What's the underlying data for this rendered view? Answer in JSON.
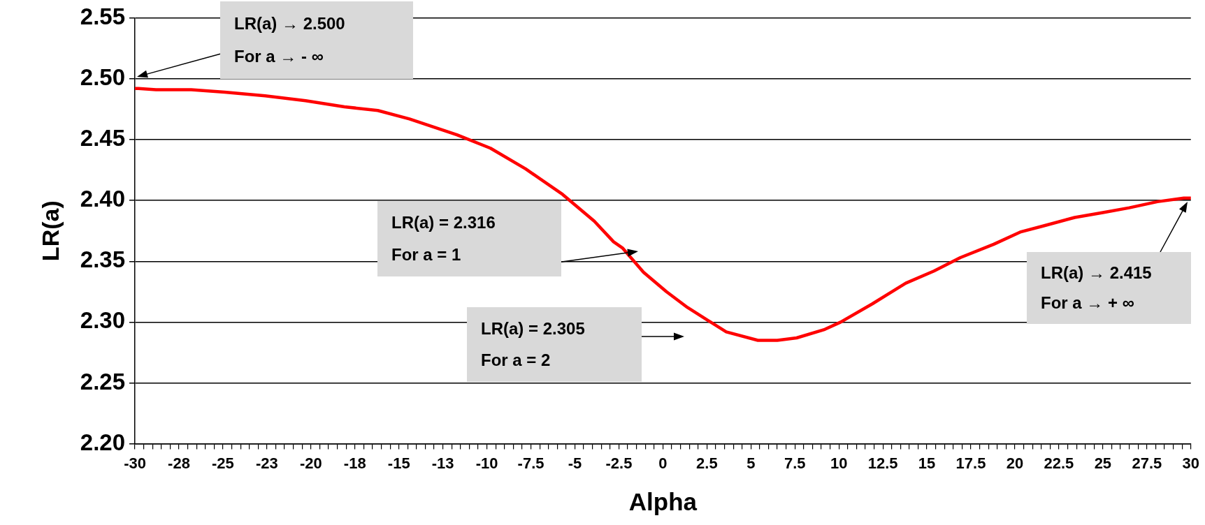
{
  "chart_data": {
    "type": "line",
    "xlabel": "Alpha",
    "ylabel": "LR(a)",
    "legend": false,
    "grid": "y",
    "marker": "none",
    "line_style": "solid",
    "x": [
      -30,
      -29.8,
      -28.8,
      -26.8,
      -24.9,
      -22.6,
      -20.3,
      -18.1,
      -16.2,
      -14.4,
      -11.7,
      -9.8,
      -7.8,
      -5.7,
      -3.9,
      -2.8,
      -2.3,
      -1.1,
      0.2,
      1.4,
      2.6,
      3.6,
      5.4,
      6.5,
      7.6,
      9.2,
      10.1,
      11.9,
      13.8,
      15.4,
      16.9,
      18.8,
      20.3,
      21.6,
      23.4,
      25,
      26.5,
      28.1,
      29.6,
      30
    ],
    "series": [
      {
        "color": "#ff0000",
        "values": [
          2.492,
          2.492,
          2.491,
          2.491,
          2.489,
          2.486,
          2.482,
          2.477,
          2.474,
          2.467,
          2.454,
          2.443,
          2.426,
          2.405,
          2.383,
          2.366,
          2.361,
          2.341,
          2.325,
          2.312,
          2.301,
          2.292,
          2.285,
          2.285,
          2.287,
          2.294,
          2.3,
          2.315,
          2.332,
          2.342,
          2.353,
          2.364,
          2.374,
          2.379,
          2.386,
          2.39,
          2.394,
          2.399,
          2.402,
          2.402
        ]
      }
    ],
    "xlim": [
      -30,
      30
    ],
    "xticks": [
      -30,
      {
        "value": -29.5,
        "label": null
      },
      {
        "value": -29,
        "label": null
      },
      {
        "value": -28.5,
        "label": null
      },
      {
        "value": -28,
        "label": null
      },
      {
        "value": -27.5,
        "label": "-28"
      },
      {
        "value": -27,
        "label": null
      },
      {
        "value": -26.5,
        "label": null
      },
      {
        "value": -26,
        "label": null
      },
      {
        "value": -25.5,
        "label": null
      },
      -25,
      {
        "value": -24.5,
        "label": null
      },
      {
        "value": -24,
        "label": null
      },
      {
        "value": -23.5,
        "label": null
      },
      {
        "value": -23,
        "label": null
      },
      {
        "value": -22.5,
        "label": "-23"
      },
      {
        "value": -22,
        "label": null
      },
      {
        "value": -21.5,
        "label": null
      },
      {
        "value": -21,
        "label": null
      },
      {
        "value": -20.5,
        "label": null
      },
      -20,
      {
        "value": -19.5,
        "label": null
      },
      {
        "value": -19,
        "label": null
      },
      {
        "value": -18.5,
        "label": null
      },
      {
        "value": -18,
        "label": null
      },
      {
        "value": -17.5,
        "label": "-18"
      },
      {
        "value": -17,
        "label": null
      },
      {
        "value": -16.5,
        "label": null
      },
      {
        "value": -16,
        "label": null
      },
      {
        "value": -15.5,
        "label": null
      },
      -15,
      {
        "value": -14.5,
        "label": null
      },
      {
        "value": -14,
        "label": null
      },
      {
        "value": -13.5,
        "label": null
      },
      {
        "value": -13,
        "label": null
      },
      {
        "value": -12.5,
        "label": "-13"
      },
      {
        "value": -12,
        "label": null
      },
      {
        "value": -11.5,
        "label": null
      },
      {
        "value": -11,
        "label": null
      },
      {
        "value": -10.5,
        "label": null
      },
      -10,
      {
        "value": -9.5,
        "label": null
      },
      {
        "value": -9,
        "label": null
      },
      {
        "value": -8.5,
        "label": null
      },
      {
        "value": -8,
        "label": null
      },
      -7.5,
      {
        "value": -7,
        "label": null
      },
      {
        "value": -6.5,
        "label": null
      },
      {
        "value": -6,
        "label": null
      },
      {
        "value": -5.5,
        "label": null
      },
      -5,
      {
        "value": -4.5,
        "label": null
      },
      {
        "value": -4,
        "label": null
      },
      {
        "value": -3.5,
        "label": null
      },
      {
        "value": -3,
        "label": null
      },
      -2.5,
      {
        "value": -2,
        "label": null
      },
      {
        "value": -1.5,
        "label": null
      },
      {
        "value": -1,
        "label": null
      },
      {
        "value": -0.5,
        "label": null
      },
      0,
      {
        "value": 0.5,
        "label": null
      },
      {
        "value": 1,
        "label": null
      },
      {
        "value": 1.5,
        "label": null
      },
      {
        "value": 2,
        "label": null
      },
      2.5,
      {
        "value": 3,
        "label": null
      },
      {
        "value": 3.5,
        "label": null
      },
      {
        "value": 4,
        "label": null
      },
      {
        "value": 4.5,
        "label": null
      },
      5,
      {
        "value": 5.5,
        "label": null
      },
      {
        "value": 6,
        "label": null
      },
      {
        "value": 6.5,
        "label": null
      },
      {
        "value": 7,
        "label": null
      },
      7.5,
      {
        "value": 8,
        "label": null
      },
      {
        "value": 8.5,
        "label": null
      },
      {
        "value": 9,
        "label": null
      },
      {
        "value": 9.5,
        "label": null
      },
      10,
      {
        "value": 10.5,
        "label": null
      },
      {
        "value": 11,
        "label": null
      },
      {
        "value": 11.5,
        "label": null
      },
      {
        "value": 12,
        "label": null
      },
      12.5,
      {
        "value": 13,
        "label": null
      },
      {
        "value": 13.5,
        "label": null
      },
      {
        "value": 14,
        "label": null
      },
      {
        "value": 14.5,
        "label": null
      },
      15,
      {
        "value": 15.5,
        "label": null
      },
      {
        "value": 16,
        "label": null
      },
      {
        "value": 16.5,
        "label": null
      },
      {
        "value": 17,
        "label": null
      },
      17.5,
      {
        "value": 18,
        "label": null
      },
      {
        "value": 18.5,
        "label": null
      },
      {
        "value": 19,
        "label": null
      },
      {
        "value": 19.5,
        "label": null
      },
      20,
      {
        "value": 20.5,
        "label": null
      },
      {
        "value": 21,
        "label": null
      },
      {
        "value": 21.5,
        "label": null
      },
      {
        "value": 22,
        "label": null
      },
      22.5,
      {
        "value": 23,
        "label": null
      },
      {
        "value": 23.5,
        "label": null
      },
      {
        "value": 24,
        "label": null
      },
      {
        "value": 24.5,
        "label": null
      },
      25,
      {
        "value": 25.5,
        "label": null
      },
      {
        "value": 26,
        "label": null
      },
      {
        "value": 26.5,
        "label": null
      },
      {
        "value": 27,
        "label": null
      },
      27.5,
      {
        "value": 28,
        "label": null
      },
      {
        "value": 28.5,
        "label": null
      },
      {
        "value": 29,
        "label": null
      },
      {
        "value": 29.5,
        "label": null
      },
      30
    ],
    "ylim": [
      2.2,
      2.55
    ],
    "yticks": [
      {
        "value": 2.2,
        "label": "2.20"
      },
      2.25,
      {
        "value": 2.3,
        "label": "2.30"
      },
      2.35,
      {
        "value": 2.4,
        "label": "2.40"
      },
      2.45,
      {
        "value": 2.5,
        "label": "2.50"
      },
      2.55
    ],
    "annotations": [
      "LR(a) → 2.500\nFor a → - ∞",
      "LR(a) = 2.316\nFor a = 1",
      "LR(a) = 2.305\nFor a = 2",
      "LR(a) → 2.415\nFor a → + ∞"
    ]
  }
}
